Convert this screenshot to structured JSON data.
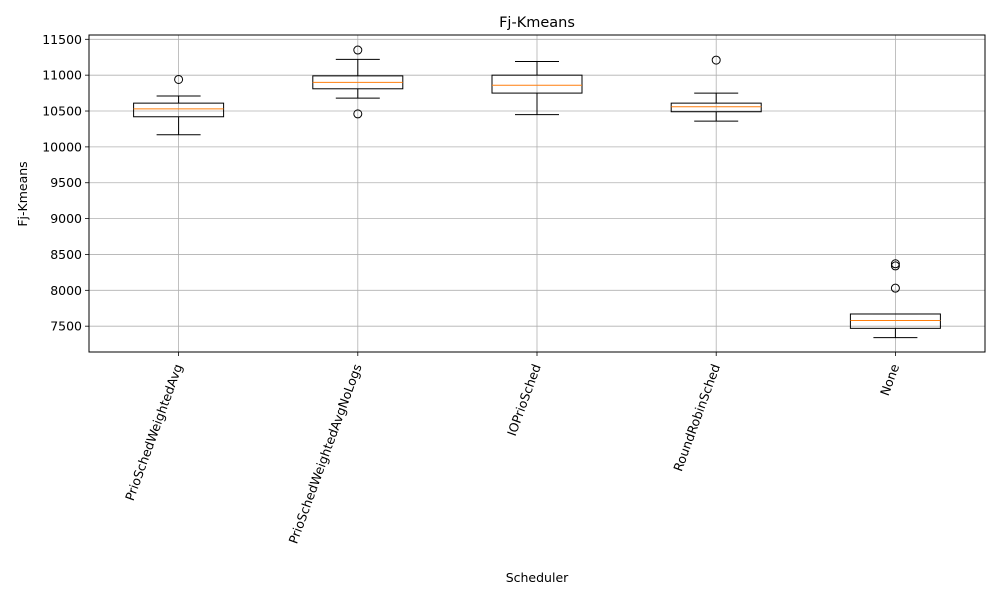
{
  "chart_data": {
    "type": "box",
    "title": "Fj-Kmeans",
    "xlabel": "Scheduler",
    "ylabel": "Fj-Kmeans",
    "ylim": [
      7140,
      11560
    ],
    "yticks": [
      7500,
      8000,
      8500,
      9000,
      9500,
      10000,
      10500,
      11000,
      11500
    ],
    "grid": true,
    "categories": [
      "PrioSchedWeightedAvg",
      "PrioSchedWeightedAvgNoLogs",
      "IOPrioSched",
      "RoundRobinSched",
      "None"
    ],
    "boxes": [
      {
        "whisker_low": 10170,
        "q1": 10420,
        "median": 10530,
        "q3": 10610,
        "whisker_high": 10710,
        "outliers": [
          10940
        ]
      },
      {
        "whisker_low": 10680,
        "q1": 10810,
        "median": 10900,
        "q3": 10990,
        "whisker_high": 11220,
        "outliers": [
          11350,
          10460
        ]
      },
      {
        "whisker_low": 10450,
        "q1": 10750,
        "median": 10860,
        "q3": 11000,
        "whisker_high": 11190,
        "outliers": []
      },
      {
        "whisker_low": 10360,
        "q1": 10490,
        "median": 10560,
        "q3": 10610,
        "whisker_high": 10750,
        "outliers": [
          11210
        ]
      },
      {
        "whisker_low": 7340,
        "q1": 7470,
        "median": 7580,
        "q3": 7670,
        "whisker_high": 7670,
        "outliers": [
          8030,
          8340,
          8370
        ]
      }
    ],
    "colors": {
      "box": "#000000",
      "median": "#ff7f0e",
      "grid": "#b0b0b0"
    }
  }
}
